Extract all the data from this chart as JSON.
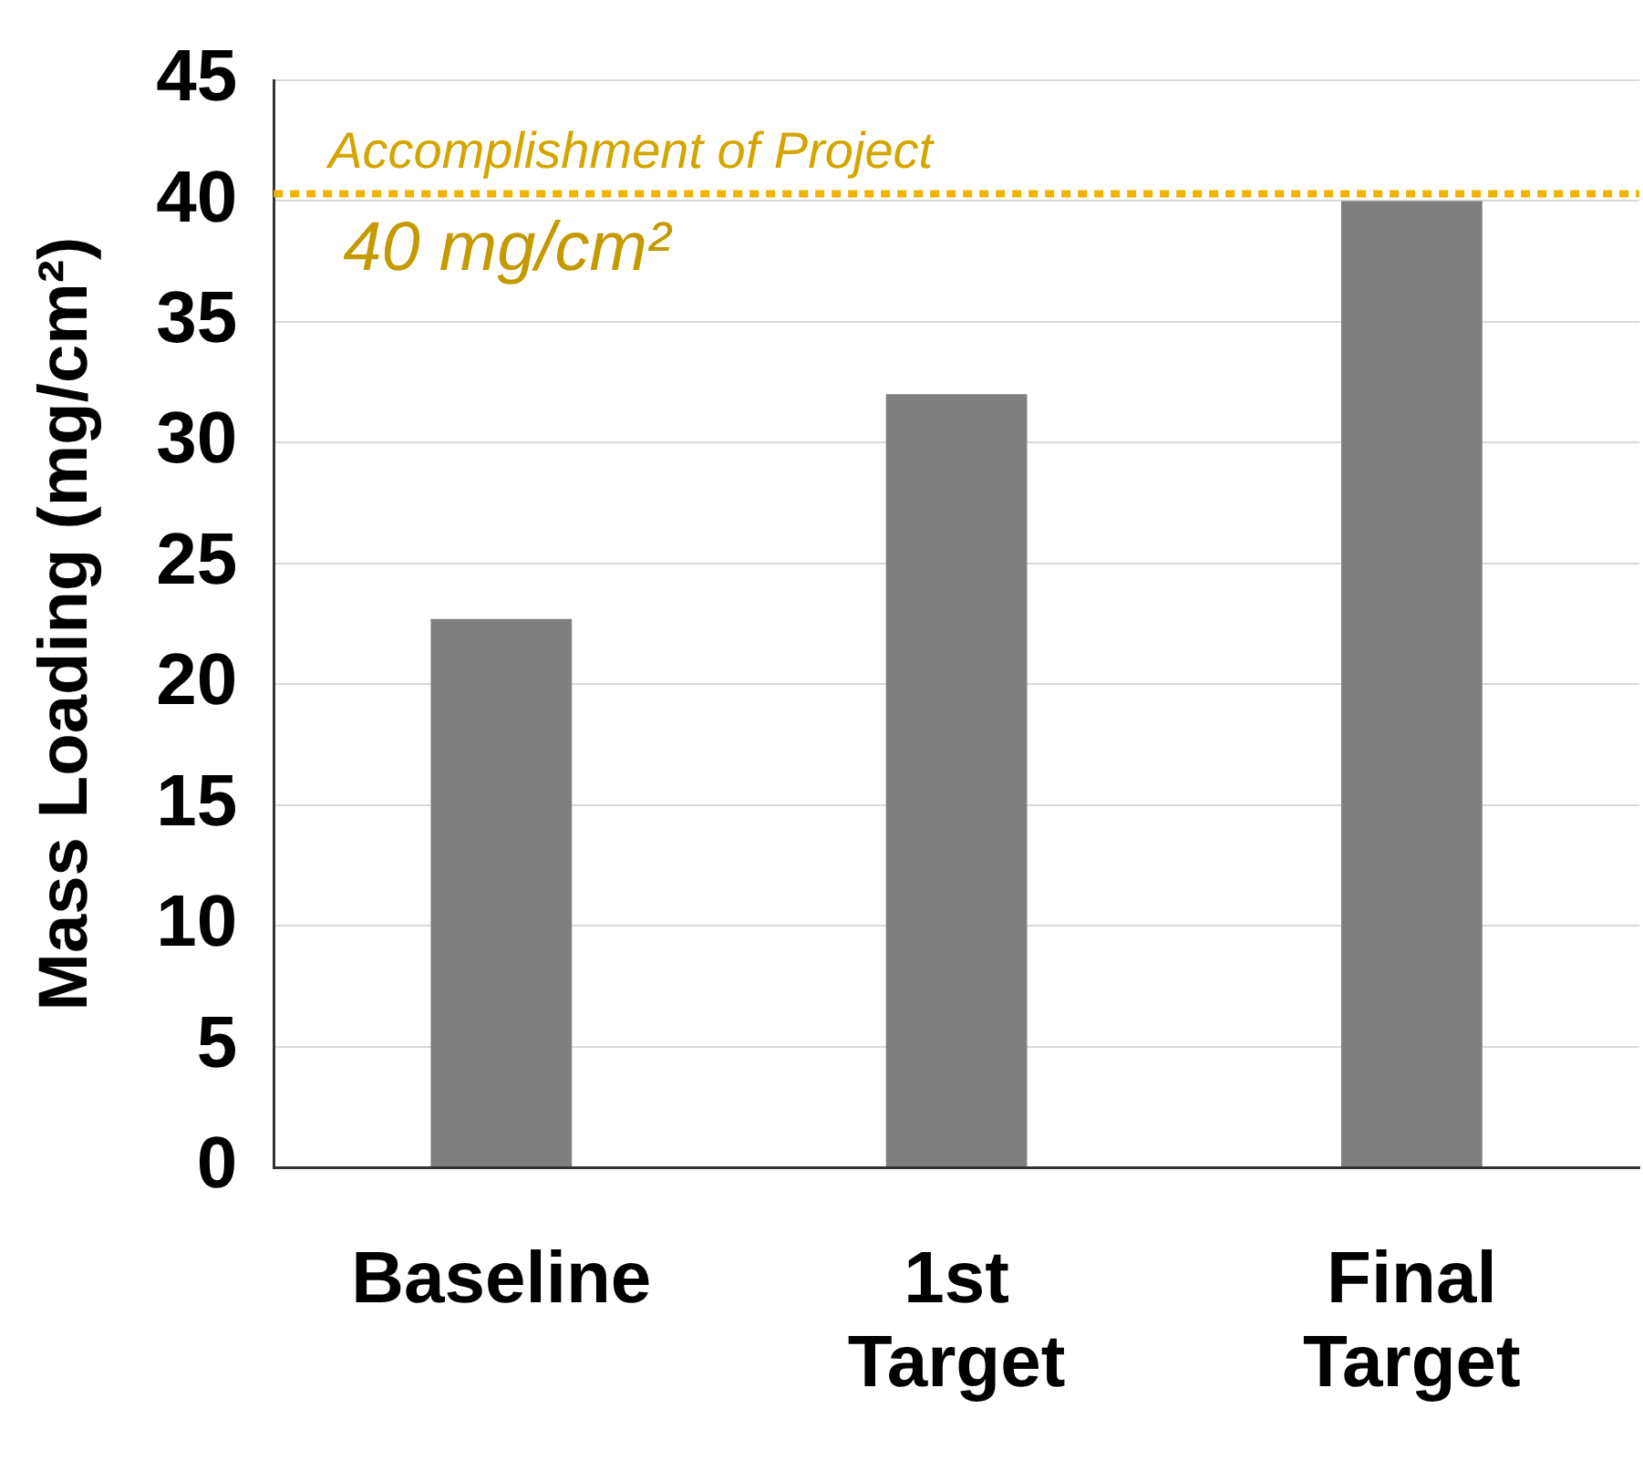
{
  "chart_data": {
    "type": "bar",
    "ylabel": "Mass Loading (mg/cm²)",
    "categories": [
      "Baseline",
      "1st Target",
      "Final Target"
    ],
    "values": [
      22.7,
      32,
      40
    ],
    "color": "#7f7f7f",
    "ylim": [
      0,
      45
    ],
    "yticks": [
      0,
      5,
      10,
      15,
      20,
      25,
      30,
      35,
      40,
      45
    ],
    "grid": "y",
    "ref_lines": [
      {
        "axis": "y",
        "value": 40.3,
        "label": "Accomplishment of Project",
        "color": "#f0b400",
        "line_style": "dotted"
      }
    ],
    "annotations": [
      "40 mg/cm²"
    ]
  }
}
